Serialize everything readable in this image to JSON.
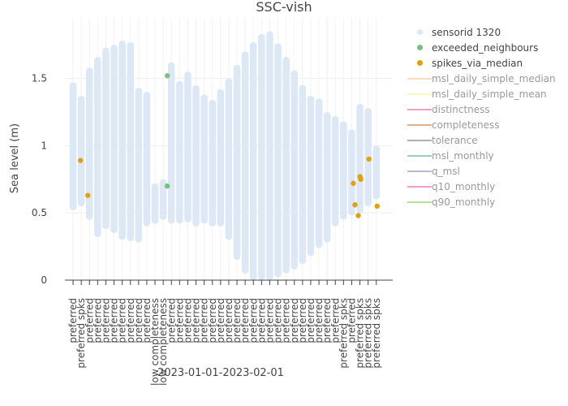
{
  "chart_data": {
    "type": "scatter",
    "title": "SSC-vish",
    "xlabel": "2023-01-01-2023-02-01",
    "ylabel": "Sea level (m)",
    "ylim": [
      0,
      1.95
    ],
    "yticks": [
      0,
      0.5,
      1,
      1.5
    ],
    "ytick_labels": [
      "0",
      "0.5",
      "1",
      "1.5"
    ],
    "grid": true,
    "legend_position": "right",
    "day_labels": [
      "preferred",
      "preferred spks",
      "preferred",
      "preferred",
      "preferred",
      "preferred",
      "preferred",
      "preferred",
      "preferred",
      "preferred",
      "low completeness",
      "low completeness",
      "preferred",
      "preferred",
      "preferred",
      "preferred",
      "preferred",
      "preferred",
      "preferred",
      "preferred",
      "preferred",
      "preferred",
      "preferred",
      "preferred",
      "preferred",
      "preferred",
      "preferred",
      "preferred",
      "preferred",
      "preferred",
      "preferred",
      "preferred",
      "preferred",
      "preferred spks",
      "preferred",
      "preferred spks",
      "preferred spks",
      "preferred spks"
    ],
    "series": [
      {
        "name": "sensorid 1320",
        "color": "#dce8f5",
        "style": "daily_bands",
        "days": [
          {
            "min": 0.52,
            "max": 1.47
          },
          {
            "min": 0.55,
            "max": 1.37
          },
          {
            "min": 0.45,
            "max": 1.58
          },
          {
            "min": 0.32,
            "max": 1.66
          },
          {
            "min": 0.38,
            "max": 1.73
          },
          {
            "min": 0.35,
            "max": 1.75
          },
          {
            "min": 0.3,
            "max": 1.78
          },
          {
            "min": 0.29,
            "max": 1.77
          },
          {
            "min": 0.28,
            "max": 1.43
          },
          {
            "min": 0.4,
            "max": 1.4
          },
          {
            "min": 0.42,
            "max": 0.72
          },
          {
            "min": 0.45,
            "max": 0.75
          },
          {
            "min": 0.42,
            "max": 1.62
          },
          {
            "min": 0.42,
            "max": 1.48
          },
          {
            "min": 0.43,
            "max": 1.55
          },
          {
            "min": 0.4,
            "max": 1.45
          },
          {
            "min": 0.42,
            "max": 1.38
          },
          {
            "min": 0.4,
            "max": 1.34
          },
          {
            "min": 0.4,
            "max": 1.42
          },
          {
            "min": 0.3,
            "max": 1.5
          },
          {
            "min": 0.15,
            "max": 1.6
          },
          {
            "min": 0.05,
            "max": 1.7
          },
          {
            "min": 0.0,
            "max": 1.77
          },
          {
            "min": 0.0,
            "max": 1.83
          },
          {
            "min": 0.0,
            "max": 1.85
          },
          {
            "min": 0.02,
            "max": 1.76
          },
          {
            "min": 0.05,
            "max": 1.66
          },
          {
            "min": 0.08,
            "max": 1.56
          },
          {
            "min": 0.12,
            "max": 1.45
          },
          {
            "min": 0.18,
            "max": 1.37
          },
          {
            "min": 0.24,
            "max": 1.35
          },
          {
            "min": 0.28,
            "max": 1.25
          },
          {
            "min": 0.4,
            "max": 1.22
          },
          {
            "min": 0.45,
            "max": 1.18
          },
          {
            "min": 0.48,
            "max": 1.12
          },
          {
            "min": 0.5,
            "max": 1.31
          },
          {
            "min": 0.55,
            "max": 1.28
          },
          {
            "min": 0.6,
            "max": 1.0
          }
        ]
      },
      {
        "name": "exceeded_neighbours",
        "color": "#77c080",
        "points": [
          {
            "day": 12.0,
            "y": 1.52
          },
          {
            "day": 12.0,
            "y": 0.7
          }
        ]
      },
      {
        "name": "spikes_via_median",
        "color": "#e0a010",
        "points": [
          {
            "day": 1.4,
            "y": 0.89
          },
          {
            "day": 2.3,
            "y": 0.63
          },
          {
            "day": 34.7,
            "y": 0.72
          },
          {
            "day": 34.9,
            "y": 0.56
          },
          {
            "day": 35.3,
            "y": 0.48
          },
          {
            "day": 35.5,
            "y": 0.77
          },
          {
            "day": 35.6,
            "y": 0.75
          },
          {
            "day": 36.6,
            "y": 0.9
          },
          {
            "day": 37.6,
            "y": 0.55
          }
        ]
      }
    ],
    "legend": [
      {
        "name": "sensorid 1320",
        "color": "#dce8f5",
        "kind": "dot",
        "active": true
      },
      {
        "name": "exceeded_neighbours",
        "color": "#77c080",
        "kind": "dot",
        "active": true
      },
      {
        "name": "spikes_via_median",
        "color": "#e0a010",
        "kind": "dot",
        "active": true
      },
      {
        "name": "msl_daily_simple_median",
        "color": "#f5b87a",
        "kind": "line",
        "active": false
      },
      {
        "name": "msl_daily_simple_mean",
        "color": "#f3f08a",
        "kind": "line",
        "active": false
      },
      {
        "name": "distinctness",
        "color": "#e0408a",
        "kind": "line",
        "active": false
      },
      {
        "name": "completeness",
        "color": "#c06020",
        "kind": "line",
        "active": false
      },
      {
        "name": "tolerance",
        "color": "#606060",
        "kind": "line",
        "active": false
      },
      {
        "name": "msl_monthly",
        "color": "#30a070",
        "kind": "line",
        "active": false
      },
      {
        "name": "q_msl",
        "color": "#8070a0",
        "kind": "line",
        "active": false
      },
      {
        "name": "q10_monthly",
        "color": "#e040a0",
        "kind": "line",
        "active": false
      },
      {
        "name": "q90_monthly",
        "color": "#70c030",
        "kind": "line",
        "active": false
      }
    ]
  }
}
